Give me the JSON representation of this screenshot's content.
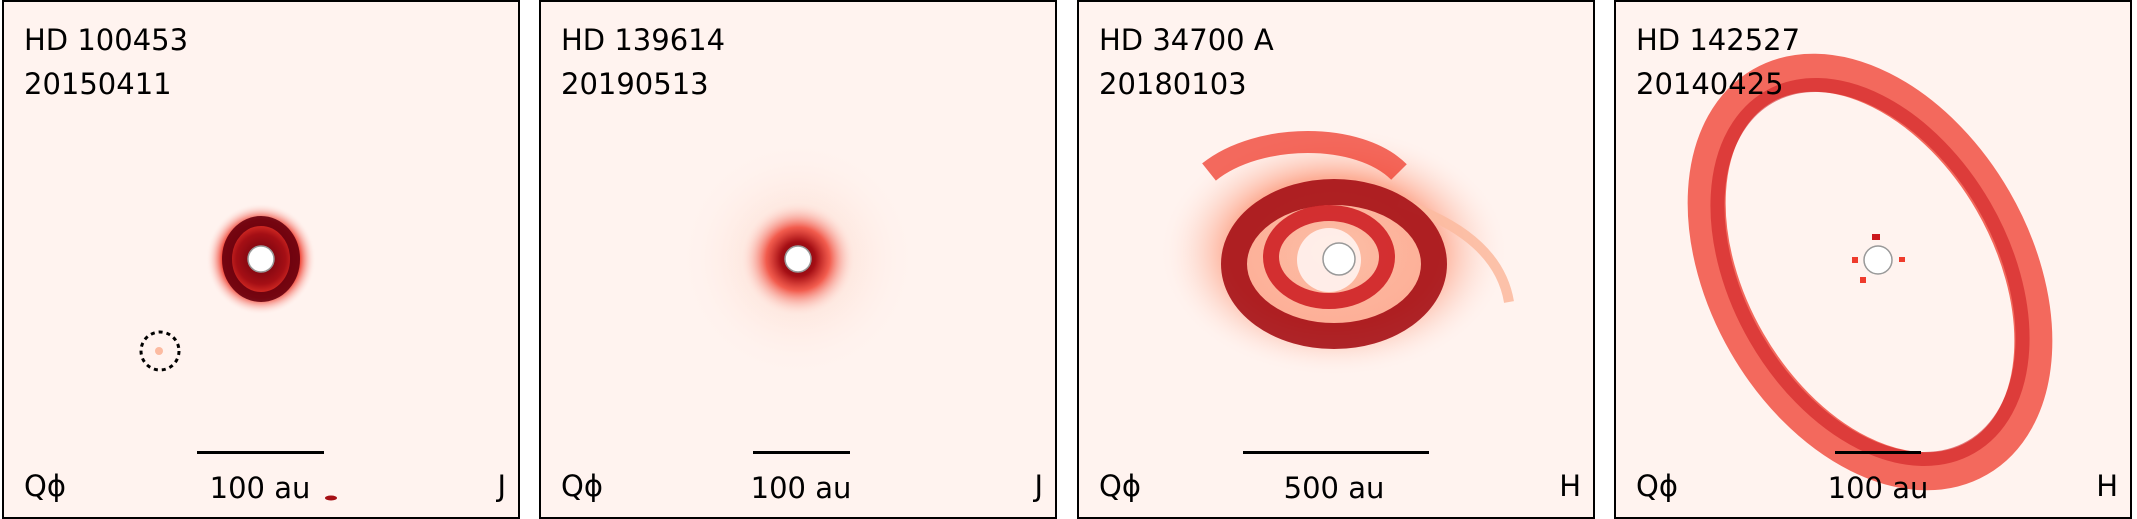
{
  "panels": [
    {
      "star": "HD 100453",
      "date": "20150411",
      "quantity": "Qϕ",
      "scale": "100 au",
      "band": "J"
    },
    {
      "star": "HD 139614",
      "date": "20190513",
      "quantity": "Qϕ",
      "scale": "100 au",
      "band": "J"
    },
    {
      "star": "HD 34700 A",
      "date": "20180103",
      "quantity": "Qϕ",
      "scale": "500 au",
      "band": "H"
    },
    {
      "star": "HD 142527",
      "date": "20140425",
      "quantity": "Qϕ",
      "scale": "100 au",
      "band": "H"
    }
  ],
  "colors": {
    "background": "#fff3ef",
    "light": "#fcbba1",
    "mid": "#ef3b2c",
    "deep": "#a50f15",
    "darkest": "#67000d"
  }
}
